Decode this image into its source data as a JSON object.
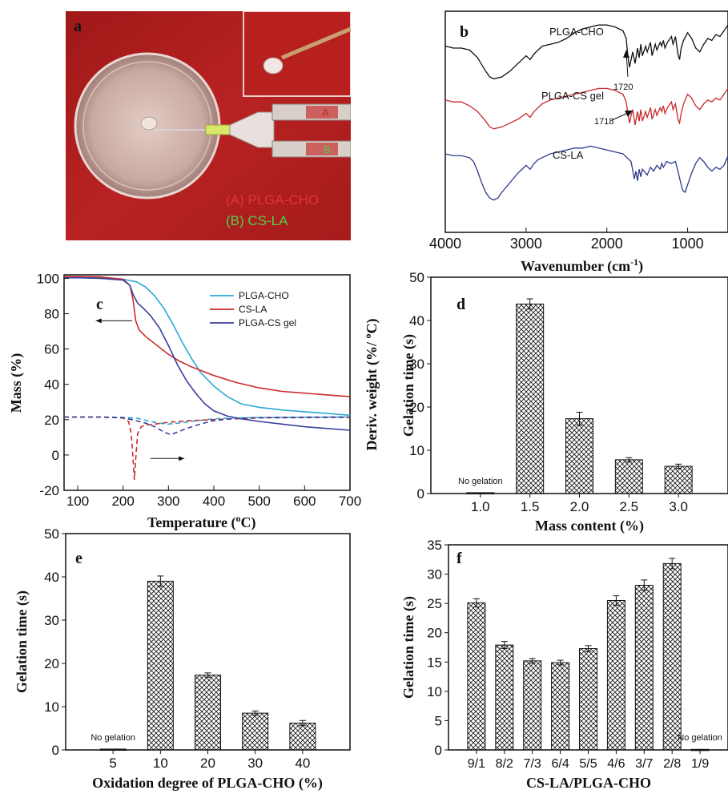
{
  "figure": {
    "photo_panel": {
      "panel_label": "a",
      "legend_a": "(A) PLGA-CHO",
      "legend_b": "(B) CS-LA",
      "syringe_label_a": "A",
      "syringe_label_b": "B",
      "colors": {
        "background": "#b51f1f",
        "legend_a": "#e0343c",
        "legend_b": "#4dd04a"
      }
    }
  },
  "chart_data": [
    {
      "panel": "b",
      "type": "line",
      "xlabel": "Wavenumber (cm-1)",
      "xlabel_parts": {
        "main": "Wavenumber (cm",
        "sup": "-1",
        "close": ")"
      },
      "xlim": [
        4000,
        500
      ],
      "x_reversed": true,
      "xticks": [
        4000,
        3000,
        2000,
        1000
      ],
      "series": [
        {
          "name": "PLGA-CHO",
          "color": "#111111",
          "x": [
            4000,
            3900,
            3800,
            3700,
            3600,
            3500,
            3450,
            3400,
            3300,
            3200,
            3100,
            3000,
            2950,
            2900,
            2800,
            2700,
            2600,
            2500,
            2400,
            2300,
            2200,
            2100,
            2000,
            1900,
            1850,
            1800,
            1760,
            1740,
            1720,
            1700,
            1680,
            1650,
            1620,
            1600,
            1580,
            1560,
            1520,
            1500,
            1460,
            1440,
            1400,
            1380,
            1340,
            1320,
            1300,
            1280,
            1250,
            1200,
            1180,
            1150,
            1120,
            1100,
            1080,
            1050,
            1000,
            950,
            900,
            850,
            800,
            750,
            700,
            650,
            600,
            550,
            500
          ],
          "y": [
            0.91,
            0.9,
            0.9,
            0.89,
            0.85,
            0.78,
            0.75,
            0.74,
            0.75,
            0.78,
            0.82,
            0.86,
            0.84,
            0.87,
            0.91,
            0.92,
            0.93,
            0.95,
            0.98,
            1.0,
            1.01,
            1.02,
            1.02,
            1.01,
            1.0,
            0.99,
            0.95,
            0.86,
            0.8,
            0.84,
            0.88,
            0.82,
            0.9,
            0.85,
            0.92,
            0.86,
            0.91,
            0.88,
            0.93,
            0.86,
            0.92,
            0.89,
            0.93,
            0.91,
            0.94,
            0.9,
            0.93,
            0.96,
            0.92,
            0.96,
            0.87,
            0.84,
            0.9,
            0.94,
            0.98,
            0.95,
            0.9,
            0.88,
            0.92,
            0.95,
            0.94,
            0.97,
            0.96,
            0.99,
            1.02
          ]
        },
        {
          "name": "PLGA-CS gel",
          "color": "#c8282a",
          "x": [
            4000,
            3900,
            3800,
            3700,
            3600,
            3500,
            3450,
            3400,
            3300,
            3200,
            3100,
            3000,
            2950,
            2900,
            2800,
            2700,
            2600,
            2500,
            2400,
            2300,
            2200,
            2100,
            2000,
            1900,
            1850,
            1800,
            1760,
            1740,
            1718,
            1700,
            1680,
            1650,
            1620,
            1600,
            1580,
            1560,
            1520,
            1500,
            1460,
            1440,
            1400,
            1380,
            1340,
            1320,
            1300,
            1280,
            1250,
            1200,
            1180,
            1150,
            1120,
            1100,
            1080,
            1050,
            1000,
            950,
            900,
            850,
            800,
            750,
            700,
            650,
            600,
            550,
            500
          ],
          "y": [
            0.63,
            0.62,
            0.62,
            0.6,
            0.57,
            0.52,
            0.49,
            0.48,
            0.49,
            0.51,
            0.53,
            0.56,
            0.54,
            0.57,
            0.61,
            0.63,
            0.64,
            0.65,
            0.66,
            0.67,
            0.68,
            0.69,
            0.69,
            0.68,
            0.67,
            0.66,
            0.62,
            0.56,
            0.51,
            0.55,
            0.58,
            0.5,
            0.57,
            0.52,
            0.58,
            0.52,
            0.57,
            0.54,
            0.59,
            0.53,
            0.58,
            0.55,
            0.59,
            0.57,
            0.6,
            0.56,
            0.59,
            0.62,
            0.58,
            0.61,
            0.53,
            0.51,
            0.56,
            0.61,
            0.66,
            0.64,
            0.6,
            0.58,
            0.61,
            0.63,
            0.62,
            0.64,
            0.63,
            0.66,
            0.69
          ]
        },
        {
          "name": "CS-LA",
          "color": "#2e3a8c",
          "x": [
            4000,
            3900,
            3800,
            3700,
            3650,
            3600,
            3550,
            3500,
            3450,
            3400,
            3350,
            3300,
            3200,
            3100,
            3000,
            2950,
            2900,
            2850,
            2800,
            2700,
            2600,
            2500,
            2400,
            2300,
            2200,
            2100,
            2000,
            1900,
            1800,
            1750,
            1700,
            1660,
            1640,
            1620,
            1600,
            1580,
            1560,
            1500,
            1460,
            1420,
            1380,
            1340,
            1320,
            1300,
            1260,
            1200,
            1150,
            1120,
            1080,
            1060,
            1030,
            1000,
            950,
            900,
            850,
            800,
            750,
            700,
            650,
            600,
            550,
            500
          ],
          "y": [
            0.35,
            0.34,
            0.34,
            0.33,
            0.31,
            0.26,
            0.2,
            0.15,
            0.12,
            0.11,
            0.12,
            0.15,
            0.2,
            0.25,
            0.29,
            0.27,
            0.3,
            0.32,
            0.33,
            0.35,
            0.36,
            0.37,
            0.38,
            0.38,
            0.39,
            0.38,
            0.37,
            0.36,
            0.35,
            0.33,
            0.31,
            0.22,
            0.26,
            0.21,
            0.27,
            0.23,
            0.27,
            0.24,
            0.28,
            0.26,
            0.29,
            0.27,
            0.3,
            0.28,
            0.31,
            0.3,
            0.31,
            0.26,
            0.19,
            0.16,
            0.15,
            0.19,
            0.25,
            0.3,
            0.33,
            0.31,
            0.28,
            0.26,
            0.28,
            0.27,
            0.29,
            0.34
          ]
        }
      ],
      "annotations": [
        {
          "text": "1720",
          "x": 1720
        },
        {
          "text": "1718",
          "x": 1718
        }
      ]
    },
    {
      "panel": "c",
      "type": "line",
      "xlabel": "Temperature (oC)",
      "xlabel_parts": {
        "main": "Temperature (",
        "sup": "o",
        "close": "C)"
      },
      "ylabel": "Mass (%)",
      "ylabel_right": "Deriv. weight (%/ oC)",
      "ylabel_right_parts": {
        "main": "Deriv. weight (%/ ",
        "sup": "o",
        "close": "C)"
      },
      "xlim": [
        70,
        700
      ],
      "ylim": [
        -20,
        102
      ],
      "xticks": [
        100,
        200,
        300,
        400,
        500,
        600,
        700
      ],
      "yticks": [
        -20,
        0,
        20,
        40,
        60,
        80,
        100
      ],
      "legend_position": "top-right",
      "series": [
        {
          "name": "PLGA-CHO",
          "color": "#2aa7d6",
          "x": [
            70,
            100,
            150,
            200,
            230,
            250,
            270,
            290,
            310,
            330,
            350,
            370,
            400,
            430,
            460,
            500,
            550,
            600,
            650,
            700
          ],
          "y": [
            100.5,
            100.5,
            100.3,
            99.5,
            98,
            95,
            90,
            83,
            74,
            64,
            55,
            47,
            39,
            33,
            29,
            27,
            25.5,
            24.5,
            23.5,
            22.5
          ]
        },
        {
          "name": "CS-LA",
          "color": "#cc2a2a",
          "x": [
            70,
            100,
            150,
            200,
            215,
            222,
            228,
            235,
            250,
            275,
            300,
            325,
            350,
            400,
            450,
            500,
            550,
            600,
            650,
            700
          ],
          "y": [
            101,
            101,
            100.8,
            99.5,
            96,
            88,
            76,
            71,
            67,
            62,
            57,
            53,
            50,
            45,
            41,
            38,
            36,
            35,
            34,
            33
          ]
        },
        {
          "name": "PLGA-CS gel",
          "color": "#3a3f9e",
          "x": [
            70,
            100,
            150,
            200,
            215,
            222,
            232,
            245,
            260,
            280,
            300,
            320,
            340,
            360,
            380,
            400,
            430,
            460,
            500,
            550,
            600,
            650,
            700
          ],
          "y": [
            100.3,
            100.3,
            100,
            99,
            96,
            91,
            86,
            83,
            79,
            72,
            62,
            51,
            42,
            35,
            29,
            25,
            22,
            20.5,
            19,
            17.5,
            16,
            15,
            14
          ]
        },
        {
          "name": "PLGA-CHO deriv.",
          "style": "dashed",
          "color": "#2aa7d6",
          "x": [
            70,
            150,
            200,
            230,
            260,
            280,
            300,
            320,
            350,
            400,
            450,
            500,
            600,
            700
          ],
          "y": [
            21.5,
            21.5,
            21.3,
            20.8,
            19,
            18,
            17.5,
            18,
            19,
            20.5,
            21,
            21.2,
            21.4,
            21.5
          ]
        },
        {
          "name": "CS-LA deriv.",
          "style": "dashed",
          "color": "#cc2a2a",
          "x": [
            70,
            150,
            200,
            212,
            218,
            222,
            225,
            228,
            232,
            240,
            250,
            270,
            300,
            350,
            400,
            450,
            500,
            600,
            700
          ],
          "y": [
            21.5,
            21.5,
            21,
            19,
            12,
            -2,
            -14,
            -2,
            12,
            16,
            17,
            17.5,
            18.5,
            19.5,
            20,
            20.5,
            21,
            21.2,
            21.3
          ]
        },
        {
          "name": "PLGA-CS gel deriv.",
          "style": "dashed",
          "color": "#3a3f9e",
          "x": [
            70,
            150,
            200,
            220,
            235,
            250,
            270,
            290,
            305,
            320,
            340,
            370,
            400,
            450,
            500,
            600,
            700
          ],
          "y": [
            21.5,
            21.5,
            21,
            20,
            19,
            18,
            16,
            13,
            11.5,
            13,
            15,
            17.5,
            19.5,
            20.8,
            21.2,
            21.4,
            21.5
          ]
        }
      ],
      "arrows": [
        {
          "direction": "left",
          "x_from": 220,
          "x_to": 140,
          "y": 76
        },
        {
          "direction": "right",
          "x_from": 260,
          "x_to": 335,
          "y": -2
        }
      ]
    },
    {
      "panel": "d",
      "type": "bar",
      "categories": [
        "1.0",
        "1.5",
        "2.0",
        "2.5",
        "3.0"
      ],
      "values": [
        0.2,
        43.8,
        17.3,
        7.8,
        6.3
      ],
      "errors": [
        0,
        1.2,
        1.5,
        0.5,
        0.5
      ],
      "xlabel": "Mass content (%)",
      "ylabel": "Gelation time (s)",
      "ylim": [
        0,
        50
      ],
      "yticks": [
        0,
        10,
        20,
        30,
        40,
        50
      ],
      "annotations": [
        {
          "text": "No gelation",
          "category": "1.0"
        }
      ]
    },
    {
      "panel": "e",
      "type": "bar",
      "categories": [
        "5",
        "10",
        "20",
        "30",
        "40"
      ],
      "values": [
        0.2,
        39.0,
        17.3,
        8.5,
        6.2
      ],
      "errors": [
        0,
        1.2,
        0.5,
        0.5,
        0.6
      ],
      "xlabel": "Oxidation degree of PLGA-CHO (%)",
      "ylabel": "Gelation time (s)",
      "ylim": [
        0,
        50
      ],
      "yticks": [
        0,
        10,
        20,
        30,
        40,
        50
      ],
      "annotations": [
        {
          "text": "No gelation",
          "category": "5"
        }
      ]
    },
    {
      "panel": "f",
      "type": "bar",
      "categories": [
        "9/1",
        "8/2",
        "7/3",
        "6/4",
        "5/5",
        "4/6",
        "3/7",
        "2/8",
        "1/9"
      ],
      "values": [
        25.1,
        17.9,
        15.2,
        14.9,
        17.3,
        25.5,
        28.1,
        31.8,
        0.1
      ],
      "errors": [
        0.7,
        0.6,
        0.4,
        0.4,
        0.5,
        0.8,
        0.9,
        0.9,
        0
      ],
      "xlabel": "CS-LA/PLGA-CHO",
      "ylabel": "Gelation time (s)",
      "ylim": [
        0,
        35
      ],
      "yticks": [
        0,
        5,
        10,
        15,
        20,
        25,
        30,
        35
      ],
      "annotations": [
        {
          "text": "No gelation",
          "category": "1/9"
        }
      ]
    }
  ]
}
